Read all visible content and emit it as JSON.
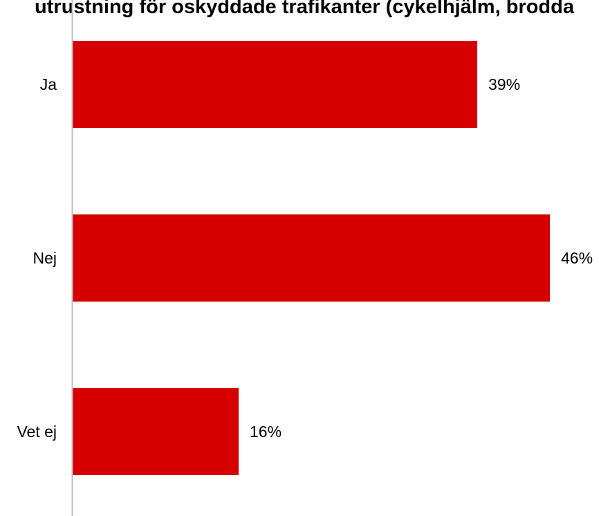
{
  "chart_data": {
    "type": "bar",
    "orientation": "horizontal",
    "title": "utrustning för oskyddade trafikanter (cykelhjälm, brodda",
    "categories": [
      "Ja",
      "Nej",
      "Vet ej"
    ],
    "values": [
      39,
      46,
      16
    ],
    "value_labels": [
      "39%",
      "46%",
      "16%"
    ],
    "unit": "%",
    "xlim": [
      0,
      46
    ],
    "grid": false,
    "legend": "none",
    "bar_color": "#D60000",
    "axis_color": "#BFBFBF"
  }
}
